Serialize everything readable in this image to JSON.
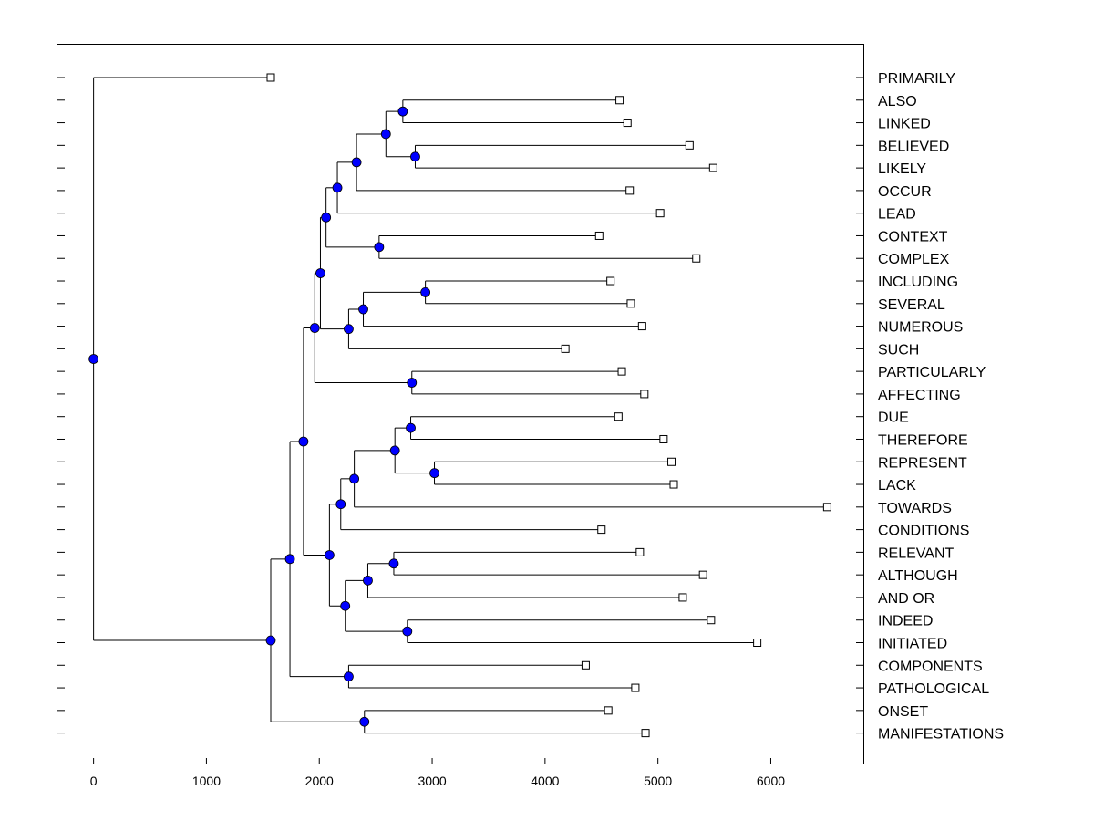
{
  "chart_data": {
    "type": "dendrogram",
    "orientation": "horizontal",
    "xlim": [
      -320,
      6820
    ],
    "x_ticks": [
      0,
      1000,
      2000,
      3000,
      4000,
      5000,
      6000
    ],
    "x_tick_labels": [
      "0",
      "1000",
      "2000",
      "3000",
      "4000",
      "5000",
      "6000"
    ],
    "colors": {
      "node": "#0000ff",
      "line": "#000000",
      "leaf_marker": "#ffffff"
    },
    "leaves": [
      {
        "label": "PRIMARILY",
        "x": 1570
      },
      {
        "label": "ALSO",
        "x": 4660
      },
      {
        "label": "LINKED",
        "x": 4730
      },
      {
        "label": "BELIEVED",
        "x": 5280
      },
      {
        "label": "LIKELY",
        "x": 5490
      },
      {
        "label": "OCCUR",
        "x": 4750
      },
      {
        "label": "LEAD",
        "x": 5020
      },
      {
        "label": "CONTEXT",
        "x": 4480
      },
      {
        "label": "COMPLEX",
        "x": 5340
      },
      {
        "label": "INCLUDING",
        "x": 4580
      },
      {
        "label": "SEVERAL",
        "x": 4760
      },
      {
        "label": "NUMEROUS",
        "x": 4860
      },
      {
        "label": "SUCH",
        "x": 4180
      },
      {
        "label": "PARTICULARLY",
        "x": 4680
      },
      {
        "label": "AFFECTING",
        "x": 4880
      },
      {
        "label": "DUE",
        "x": 4650
      },
      {
        "label": "THEREFORE",
        "x": 5050
      },
      {
        "label": "REPRESENT",
        "x": 5120
      },
      {
        "label": "LACK",
        "x": 5140
      },
      {
        "label": "TOWARDS",
        "x": 6500
      },
      {
        "label": "CONDITIONS",
        "x": 4500
      },
      {
        "label": "RELEVANT",
        "x": 4840
      },
      {
        "label": "ALTHOUGH",
        "x": 5400
      },
      {
        "label": "AND OR",
        "x": 5220
      },
      {
        "label": "INDEED",
        "x": 5470
      },
      {
        "label": "INITIATED",
        "x": 5880
      },
      {
        "label": "COMPONENTS",
        "x": 4360
      },
      {
        "label": "PATHOLOGICAL",
        "x": 4800
      },
      {
        "label": "ONSET",
        "x": 4560
      },
      {
        "label": "MANIFESTATIONS",
        "x": 4890
      }
    ],
    "merges": [
      {
        "id": "ALSO_LINKED",
        "x": 2740,
        "children": [
          "ALSO",
          "LINKED"
        ]
      },
      {
        "id": "BELIEVED_LIKELY",
        "x": 2850,
        "children": [
          "BELIEVED",
          "LIKELY"
        ]
      },
      {
        "id": "N_ALBL",
        "x": 2590,
        "children": [
          "ALSO_LINKED",
          "BELIEVED_LIKELY"
        ]
      },
      {
        "id": "N_OCCUR",
        "x": 2330,
        "children": [
          "N_ALBL",
          "OCCUR"
        ]
      },
      {
        "id": "N_LEAD",
        "x": 2160,
        "children": [
          "N_OCCUR",
          "LEAD"
        ]
      },
      {
        "id": "CONTEXT_COMPLEX",
        "x": 2530,
        "children": [
          "CONTEXT",
          "COMPLEX"
        ]
      },
      {
        "id": "N_TOP",
        "x": 2060,
        "children": [
          "N_LEAD",
          "CONTEXT_COMPLEX"
        ]
      },
      {
        "id": "INCLUDING_SEVERAL",
        "x": 2940,
        "children": [
          "INCLUDING",
          "SEVERAL"
        ]
      },
      {
        "id": "N_NUMEROUS",
        "x": 2390,
        "children": [
          "INCLUDING_SEVERAL",
          "NUMEROUS"
        ]
      },
      {
        "id": "N_SUCH",
        "x": 2260,
        "children": [
          "N_NUMEROUS",
          "SUCH"
        ]
      },
      {
        "id": "N_UPPER",
        "x": 2010,
        "children": [
          "N_TOP",
          "N_SUCH"
        ]
      },
      {
        "id": "PARTICULARLY_AFFECTING",
        "x": 2820,
        "children": [
          "PARTICULARLY",
          "AFFECTING"
        ]
      },
      {
        "id": "N_UPPER2",
        "x": 1960,
        "children": [
          "N_UPPER",
          "PARTICULARLY_AFFECTING"
        ]
      },
      {
        "id": "DUE_THEREFORE",
        "x": 2810,
        "children": [
          "DUE",
          "THEREFORE"
        ]
      },
      {
        "id": "REPRESENT_LACK",
        "x": 3020,
        "children": [
          "REPRESENT",
          "LACK"
        ]
      },
      {
        "id": "N_DTRL",
        "x": 2670,
        "children": [
          "DUE_THEREFORE",
          "REPRESENT_LACK"
        ]
      },
      {
        "id": "N_TOWARDS",
        "x": 2310,
        "children": [
          "N_DTRL",
          "TOWARDS"
        ]
      },
      {
        "id": "N_CONDITIONS",
        "x": 2190,
        "children": [
          "N_TOWARDS",
          "CONDITIONS"
        ]
      },
      {
        "id": "RELEVANT_ALTHOUGH",
        "x": 2660,
        "children": [
          "RELEVANT",
          "ALTHOUGH"
        ]
      },
      {
        "id": "N_ANDOR",
        "x": 2430,
        "children": [
          "RELEVANT_ALTHOUGH",
          "AND OR"
        ]
      },
      {
        "id": "INDEED_INITIATED",
        "x": 2780,
        "children": [
          "INDEED",
          "INITIATED"
        ]
      },
      {
        "id": "N_IND",
        "x": 2230,
        "children": [
          "N_ANDOR",
          "INDEED_INITIATED"
        ]
      },
      {
        "id": "N_LOWMID",
        "x": 2090,
        "children": [
          "N_CONDITIONS",
          "N_IND"
        ]
      },
      {
        "id": "N_MID",
        "x": 1860,
        "children": [
          "N_UPPER2",
          "N_LOWMID"
        ]
      },
      {
        "id": "COMPONENTS_PATHOLOGICAL",
        "x": 2260,
        "children": [
          "COMPONENTS",
          "PATHOLOGICAL"
        ]
      },
      {
        "id": "N_LOW1",
        "x": 1740,
        "children": [
          "N_MID",
          "COMPONENTS_PATHOLOGICAL"
        ]
      },
      {
        "id": "ONSET_MANIFESTATIONS",
        "x": 2400,
        "children": [
          "ONSET",
          "MANIFESTATIONS"
        ]
      },
      {
        "id": "N_LOW2",
        "x": 1570,
        "children": [
          "N_LOW1",
          "ONSET_MANIFESTATIONS"
        ]
      },
      {
        "id": "ROOT",
        "x": 0,
        "children": [
          "PRIMARILY",
          "N_LOW2"
        ]
      }
    ]
  }
}
